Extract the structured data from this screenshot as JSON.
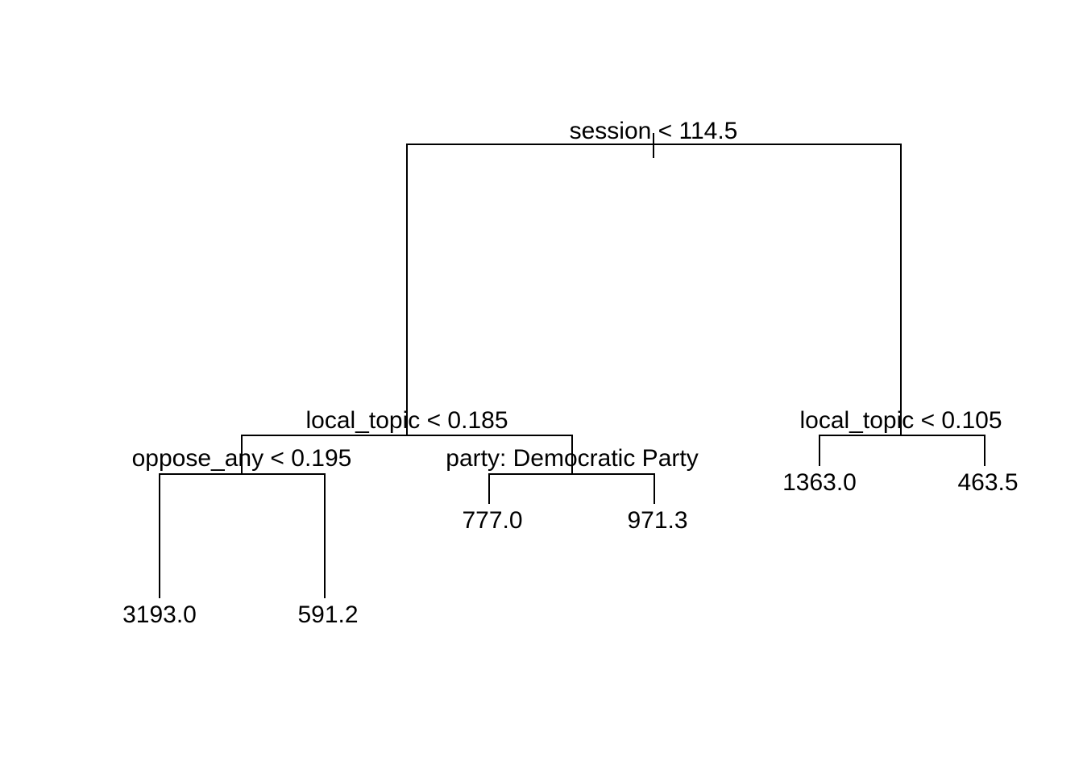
{
  "tree": {
    "root": {
      "split_label": "session < 114.5",
      "left": {
        "split_label": "local_topic < 0.185",
        "left": {
          "split_label": "oppose_any < 0.195",
          "left": {
            "leaf_value": "3193.0"
          },
          "right": {
            "leaf_value": "591.2"
          }
        },
        "right": {
          "split_label": "party: Democratic Party",
          "left": {
            "leaf_value": "777.0"
          },
          "right": {
            "leaf_value": "971.3"
          }
        }
      },
      "right": {
        "split_label": "local_topic < 0.105",
        "left": {
          "leaf_value": "1363.0"
        },
        "right": {
          "leaf_value": "463.5"
        }
      }
    }
  }
}
